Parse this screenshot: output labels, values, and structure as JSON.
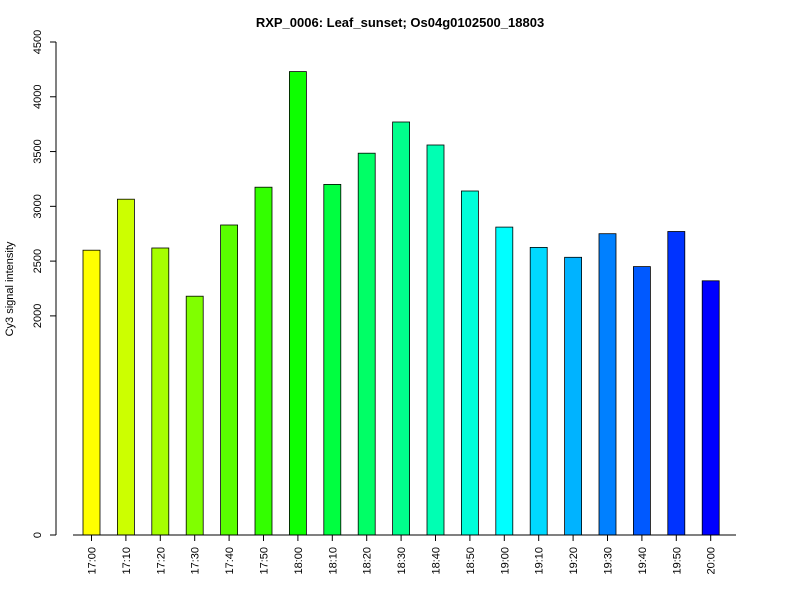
{
  "chart_data": {
    "type": "bar",
    "title": "RXP_0006: Leaf_sunset; Os04g0102500_18803",
    "xlabel": "",
    "ylabel": "Cy3 signal intensity",
    "categories": [
      "17:00",
      "17:10",
      "17:20",
      "17:30",
      "17:40",
      "17:50",
      "18:00",
      "18:10",
      "18:20",
      "18:30",
      "18:40",
      "18:50",
      "19:00",
      "19:10",
      "19:20",
      "19:30",
      "19:40",
      "19:50",
      "20:00"
    ],
    "values": [
      2600,
      3065,
      2620,
      2180,
      2830,
      3175,
      4230,
      3200,
      3485,
      3770,
      3560,
      3140,
      2810,
      2625,
      2535,
      2750,
      2450,
      2770,
      2320
    ],
    "colors": [
      "#FFFF00",
      "#CCFF00",
      "#A6FF00",
      "#80FF00",
      "#59FF00",
      "#33FF00",
      "#0DFF00",
      "#00FF40",
      "#00FF66",
      "#00FF8C",
      "#00FFB3",
      "#00FFD9",
      "#00FFFF",
      "#00D9FF",
      "#00B3FF",
      "#0080FF",
      "#0059FF",
      "#0033FF",
      "#0000FF"
    ],
    "yticks": [
      0,
      2000,
      2500,
      3000,
      3500,
      4000,
      4500
    ],
    "ylim": [
      0,
      4500
    ],
    "grid": false,
    "legend": "none"
  }
}
